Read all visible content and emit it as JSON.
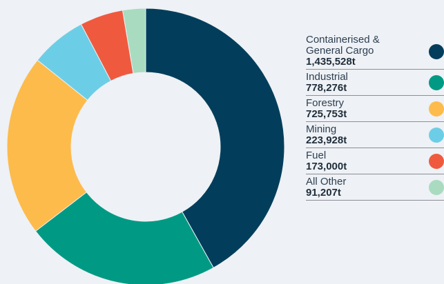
{
  "chart_data": {
    "type": "pie",
    "donut": true,
    "title": "",
    "legend_position": "right",
    "slices": [
      {
        "label": "Containerised &\nGeneral Cargo",
        "value": 1435528,
        "value_label": "1,435,528t",
        "color": "#023e5b"
      },
      {
        "label": "Industrial",
        "value": 778276,
        "value_label": "778,276t",
        "color": "#009a84"
      },
      {
        "label": "Forestry",
        "value": 725753,
        "value_label": "725,753t",
        "color": "#fdbb4b"
      },
      {
        "label": "Mining",
        "value": 223928,
        "value_label": "223,928t",
        "color": "#6ccee6"
      },
      {
        "label": "Fuel",
        "value": 173000,
        "value_label": "173,000t",
        "color": "#ef5a3f"
      },
      {
        "label": "All Other",
        "value": 91207,
        "value_label": "91,207t",
        "color": "#a9dbc0"
      }
    ]
  }
}
